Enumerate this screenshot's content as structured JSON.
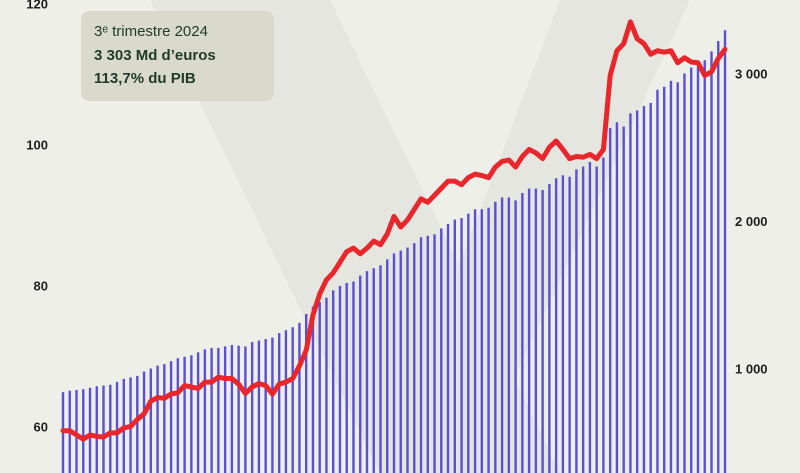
{
  "chart_data": {
    "type": "bar-line",
    "annotation": {
      "lines": [
        "3ᵉ trimestre 2024",
        "3 303 Md d’euros",
        "113,7% du PIB"
      ]
    },
    "categories": [
      null,
      null,
      null,
      null,
      null,
      null,
      null,
      null,
      null,
      null,
      null,
      null,
      null,
      null,
      null,
      null,
      null,
      null,
      null,
      null,
      null,
      null,
      null,
      null,
      null,
      null,
      null,
      null,
      null,
      null,
      null,
      null,
      null,
      null,
      null,
      null,
      null,
      null,
      null,
      null,
      null,
      null,
      null,
      null,
      null,
      null,
      null,
      null,
      null,
      null,
      null,
      null,
      null,
      null,
      null,
      null,
      null,
      null,
      null,
      null,
      null,
      null,
      null,
      null,
      null,
      null,
      null,
      null,
      null,
      null,
      null,
      null,
      null,
      null,
      null,
      null,
      null,
      null,
      null,
      null,
      null,
      null,
      null,
      null,
      null,
      null,
      null,
      null,
      null,
      null,
      null,
      null,
      null,
      null,
      null,
      null,
      null,
      null,
      null
    ],
    "series": [
      {
        "type": "bar",
        "axis": "y2",
        "color": "#5b4fd6",
        "values": [
          850,
          860,
          865,
          870,
          880,
          890,
          895,
          900,
          920,
          940,
          950,
          960,
          990,
          1010,
          1030,
          1040,
          1060,
          1080,
          1090,
          1100,
          1120,
          1140,
          1150,
          1150,
          1160,
          1170,
          1165,
          1160,
          1190,
          1200,
          1210,
          1220,
          1250,
          1270,
          1290,
          1320,
          1380,
          1430,
          1460,
          1490,
          1540,
          1570,
          1590,
          1600,
          1640,
          1670,
          1690,
          1710,
          1750,
          1790,
          1810,
          1830,
          1860,
          1900,
          1910,
          1920,
          1960,
          1990,
          2020,
          2030,
          2060,
          2090,
          2090,
          2100,
          2140,
          2170,
          2170,
          2150,
          2200,
          2230,
          2230,
          2220,
          2260,
          2300,
          2320,
          2310,
          2360,
          2380,
          2410,
          2380,
          2440,
          2640,
          2680,
          2650,
          2740,
          2760,
          2790,
          2810,
          2900,
          2920,
          2960,
          2950,
          3010,
          3050,
          3090,
          3100,
          3160,
          3230,
          3303
        ]
      },
      {
        "type": "line",
        "axis": "y",
        "color": "#e8262b",
        "values": [
          59.6,
          59.6,
          59.0,
          58.4,
          59.0,
          58.8,
          58.7,
          59.3,
          59.3,
          60.0,
          60.2,
          61.2,
          62.0,
          63.8,
          64.3,
          64.2,
          64.8,
          65.0,
          66.0,
          65.8,
          65.6,
          66.5,
          66.5,
          67.2,
          67.0,
          67.0,
          66.2,
          64.9,
          65.8,
          66.3,
          66.0,
          64.8,
          66.2,
          66.5,
          67.0,
          68.8,
          71.0,
          76.0,
          79.0,
          81.0,
          82.0,
          83.5,
          85.0,
          85.5,
          84.7,
          85.5,
          86.5,
          86.0,
          87.5,
          90.0,
          88.5,
          89.5,
          91.0,
          92.5,
          92.0,
          93.0,
          94.0,
          95.0,
          95.0,
          94.5,
          95.5,
          96.0,
          95.8,
          95.5,
          97.0,
          97.8,
          98.0,
          97.0,
          98.5,
          99.5,
          99.0,
          98.2,
          99.8,
          100.7,
          99.5,
          98.2,
          98.5,
          98.4,
          98.8,
          98.2,
          99.5,
          110.0,
          113.5,
          114.5,
          117.6,
          115.2,
          114.5,
          113.0,
          113.5,
          113.3,
          113.5,
          111.8,
          112.5,
          111.9,
          111.8,
          110.0,
          110.5,
          112.4,
          113.7
        ]
      }
    ],
    "ylim": [
      53.6,
      120.7
    ],
    "yticks": [
      60,
      80,
      100,
      120
    ],
    "y2lim": [
      302,
      3508
    ],
    "y2ticks": [
      {
        "value": 1000,
        "label": "1 000"
      },
      {
        "value": 2000,
        "label": "2 000"
      },
      {
        "value": 3000,
        "label": "3 000"
      }
    ]
  }
}
